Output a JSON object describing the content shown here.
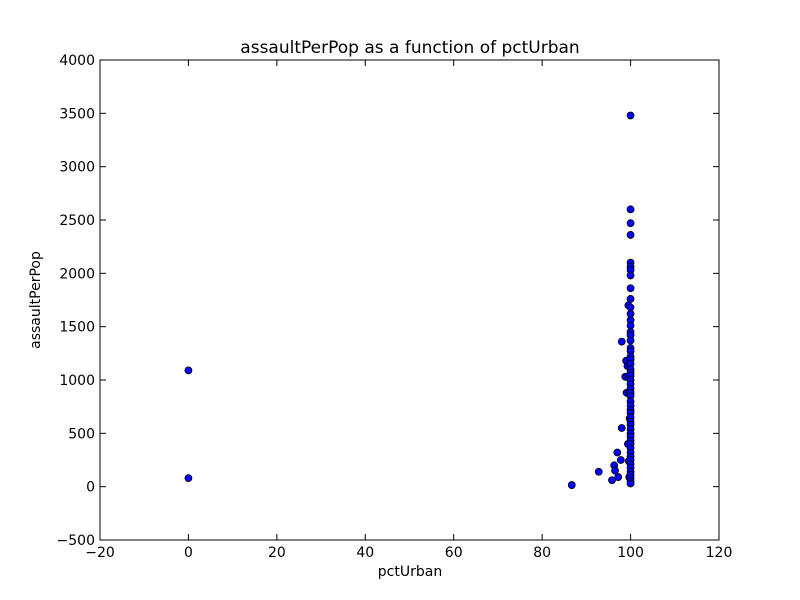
{
  "chart_data": {
    "type": "scatter",
    "title": "assaultPerPop as a function of pctUrban",
    "xlabel": "pctUrban",
    "ylabel": "assaultPerPop",
    "xlim": [
      -20,
      120
    ],
    "ylim": [
      -500,
      4000
    ],
    "x_ticks": [
      "−20",
      "0",
      "20",
      "40",
      "60",
      "80",
      "100",
      "120"
    ],
    "y_ticks": [
      "−500",
      "0",
      "500",
      "1000",
      "1500",
      "2000",
      "2500",
      "3000",
      "3500",
      "4000"
    ],
    "grid": false,
    "legend": "none",
    "marker_color": "#0000ff",
    "marker_edge": "#000000",
    "series": [
      {
        "points": [
          [
            0,
            1090
          ],
          [
            0,
            80
          ],
          [
            86.7,
            15
          ],
          [
            92.8,
            140
          ],
          [
            95.8,
            60
          ],
          [
            96.3,
            200
          ],
          [
            96.5,
            150
          ],
          [
            97,
            320
          ],
          [
            97.2,
            90
          ],
          [
            97.8,
            250
          ],
          [
            98,
            1360
          ],
          [
            98,
            550
          ],
          [
            98.8,
            1030
          ],
          [
            99,
            1180
          ],
          [
            99.1,
            880
          ],
          [
            99.3,
            1130
          ],
          [
            99.4,
            400
          ],
          [
            99.5,
            1700
          ],
          [
            99.6,
            240
          ],
          [
            99.6,
            1020
          ],
          [
            99.7,
            90
          ],
          [
            99.7,
            880
          ],
          [
            99.8,
            640
          ],
          [
            99.9,
            1150
          ],
          [
            100,
            3480
          ],
          [
            100,
            2600
          ],
          [
            100,
            2470
          ],
          [
            100,
            2360
          ],
          [
            100,
            2100
          ],
          [
            100,
            2060
          ],
          [
            100,
            2030
          ],
          [
            100,
            1980
          ],
          [
            100,
            1860
          ],
          [
            100,
            1760
          ],
          [
            100,
            1680
          ],
          [
            100,
            1620
          ],
          [
            100,
            1560
          ],
          [
            100,
            1510
          ],
          [
            100,
            1450
          ],
          [
            100,
            1420
          ],
          [
            100,
            1370
          ],
          [
            100,
            1300
          ],
          [
            100,
            1270
          ],
          [
            100,
            1220
          ],
          [
            100,
            1190
          ],
          [
            100,
            1150
          ],
          [
            100,
            1100
          ],
          [
            100,
            1070
          ],
          [
            100,
            1040
          ],
          [
            100,
            1000
          ],
          [
            100,
            960
          ],
          [
            100,
            920
          ],
          [
            100,
            880
          ],
          [
            100,
            850
          ],
          [
            100,
            800
          ],
          [
            100,
            760
          ],
          [
            100,
            720
          ],
          [
            100,
            690
          ],
          [
            100,
            650
          ],
          [
            100,
            610
          ],
          [
            100,
            580
          ],
          [
            100,
            540
          ],
          [
            100,
            500
          ],
          [
            100,
            470
          ],
          [
            100,
            430
          ],
          [
            100,
            400
          ],
          [
            100,
            360
          ],
          [
            100,
            320
          ],
          [
            100,
            280
          ],
          [
            100,
            250
          ],
          [
            100,
            210
          ],
          [
            100,
            180
          ],
          [
            100,
            140
          ],
          [
            100,
            110
          ],
          [
            100,
            80
          ],
          [
            100,
            50
          ],
          [
            100,
            30
          ]
        ]
      }
    ]
  }
}
